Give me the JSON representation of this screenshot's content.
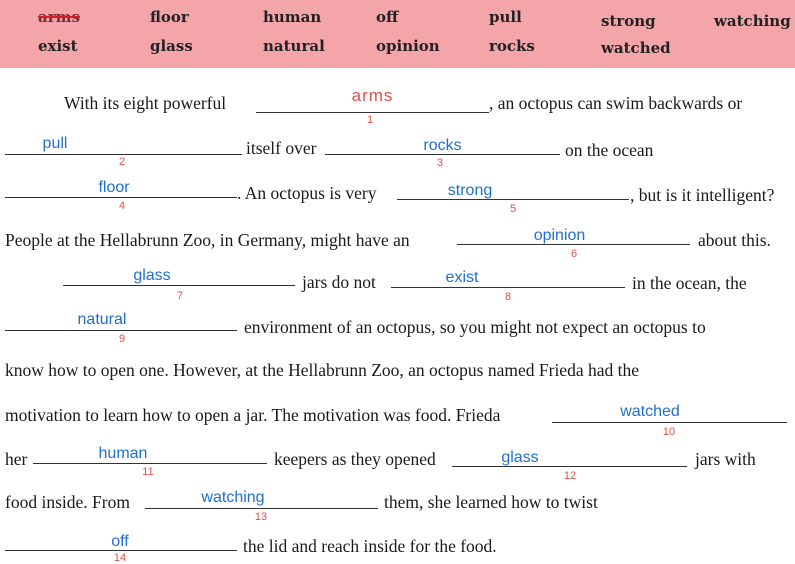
{
  "word_bank": {
    "columns": [
      [
        "arms",
        "exist"
      ],
      [
        "floor",
        "glass"
      ],
      [
        "human",
        "natural"
      ],
      [
        "off",
        "opinion"
      ],
      [
        "pull",
        "rocks"
      ],
      [
        "strong",
        "watched"
      ],
      [
        "watching"
      ]
    ],
    "crossed_out": "arms"
  },
  "text": {
    "l1a": "With its eight  powerful",
    "l1b": ", an octopus can swim backwards or",
    "l2a": "itself over",
    "l2b": "on the ocean",
    "l3a": ". An octopus is very",
    "l3b": ", but is it intelligent?",
    "l4a": "People at the Hellabrunn Zoo, in Germany, might have an",
    "l4b": "about this.",
    "l5a": "jars do not",
    "l5b": "in the ocean, the",
    "l6a": "environment of an octopus, so you might not expect an octopus to",
    "l7": "know how to open one. However, at the Hellabrunn Zoo, an octopus named Frieda had the",
    "l8a": "motivation to learn how to open a jar. The motivation was food. Frieda",
    "l9a": "her",
    "l9b": "keepers as they opened",
    "l9c": "jars with",
    "l10a": "food inside. From",
    "l10b": "them, she learned how to twist",
    "l11a": "the lid and reach inside for the food."
  },
  "answers": [
    {
      "num": "1",
      "word": "arms"
    },
    {
      "num": "2",
      "word": "pull"
    },
    {
      "num": "3",
      "word": "rocks"
    },
    {
      "num": "4",
      "word": "floor"
    },
    {
      "num": "5",
      "word": "strong"
    },
    {
      "num": "6",
      "word": "opinion"
    },
    {
      "num": "7",
      "word": "glass"
    },
    {
      "num": "8",
      "word": "exist"
    },
    {
      "num": "9",
      "word": "natural"
    },
    {
      "num": "10",
      "word": "watched"
    },
    {
      "num": "11",
      "word": "human"
    },
    {
      "num": "12",
      "word": "glass"
    },
    {
      "num": "13",
      "word": "watching"
    },
    {
      "num": "14",
      "word": "off"
    }
  ],
  "colors": {
    "word_bank_bg": "#f4a5aa",
    "answer_blue": "#1f6fd0",
    "number_red": "#e0504a"
  }
}
